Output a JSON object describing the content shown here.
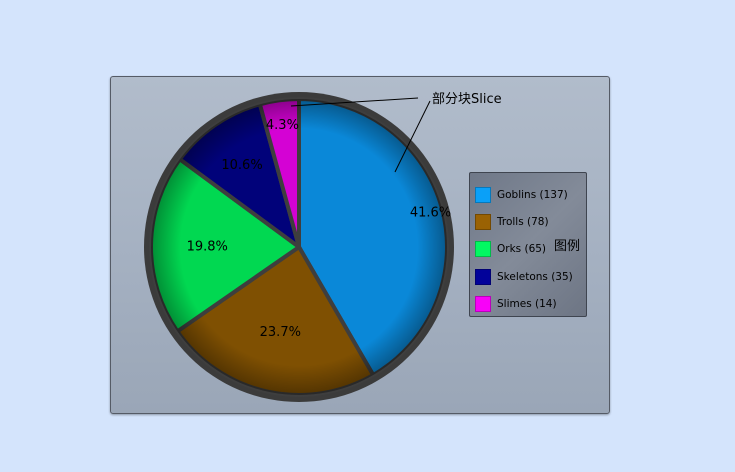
{
  "chart_data": {
    "type": "pie",
    "categories": [
      "Goblins",
      "Trolls",
      "Orks",
      "Skeletons",
      "Slimes"
    ],
    "values": [
      137,
      78,
      65,
      35,
      14
    ],
    "percent_labels": [
      "41.6%",
      "23.7%",
      "19.8%",
      "10.6%",
      "4.3%"
    ],
    "legend_labels": [
      "Goblins (137)",
      "Trolls (78)",
      "Orks (65)",
      "Skeletons (35)",
      "Slimes (14)"
    ],
    "colors": [
      "#0a88d8",
      "#7f5002",
      "#01d851",
      "#01027a",
      "#d402d4"
    ],
    "legend_colors": [
      "#0aa0f8",
      "#9a6203",
      "#02f862",
      "#02029a",
      "#f802f8"
    ],
    "legend": "right"
  },
  "annotations": {
    "slice_label": "部分块Slice",
    "legend_label": "图例"
  }
}
